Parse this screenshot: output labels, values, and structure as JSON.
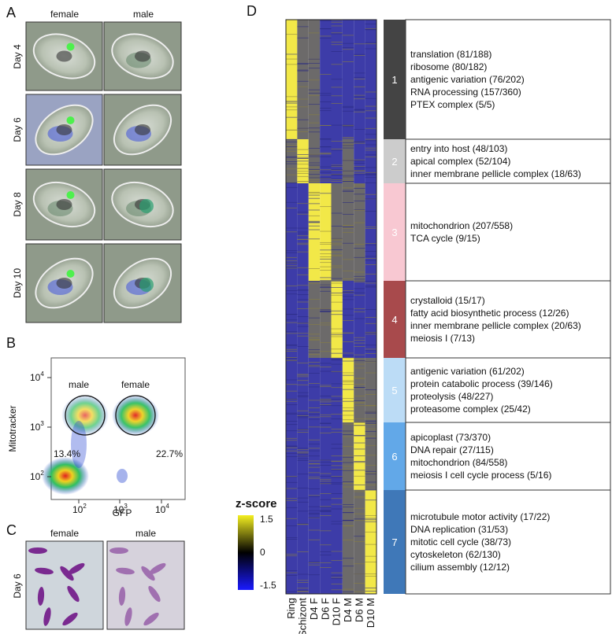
{
  "panel_a": {
    "letter": "A",
    "columns": [
      "female",
      "male"
    ],
    "rows": [
      "Day 4",
      "Day 6",
      "Day 8",
      "Day 10"
    ]
  },
  "panel_b": {
    "letter": "B",
    "y_label": "Mitotracker",
    "x_label": "GFP",
    "gates": [
      "male",
      "female"
    ],
    "percentages": [
      "13.4%",
      "22.7%"
    ],
    "y_ticks": [
      {
        "base": "10",
        "exp": "4"
      },
      {
        "base": "10",
        "exp": "3"
      },
      {
        "base": "10",
        "exp": "2"
      }
    ],
    "x_ticks": [
      {
        "base": "10",
        "exp": "2"
      },
      {
        "base": "10",
        "exp": "3"
      },
      {
        "base": "10",
        "exp": "4"
      }
    ]
  },
  "panel_c": {
    "letter": "C",
    "columns": [
      "female",
      "male"
    ],
    "row": "Day 6"
  },
  "panel_d": {
    "letter": "D",
    "columns": [
      "Ring",
      "Schizont",
      "D4 F",
      "D6 F",
      "D10 F",
      "D4 M",
      "D6 M",
      "D10 M"
    ],
    "colorbar": {
      "title": "z-score",
      "ticks": [
        "1.5",
        "0",
        "-1.5"
      ]
    },
    "clusters": [
      {
        "number": "1",
        "terms": [
          "translation (81/188)",
          "ribosome (80/182)",
          "antigenic variation (76/202)",
          "RNA processing (157/360)",
          "PTEX complex (5/5)"
        ]
      },
      {
        "number": "2",
        "terms": [
          "entry into host (48/103)",
          "apical complex (52/104)",
          "inner membrane pellicle complex (18/63)"
        ]
      },
      {
        "number": "3",
        "terms": [
          "mitochondrion (207/558)",
          "TCA cycle (9/15)"
        ]
      },
      {
        "number": "4",
        "terms": [
          "crystalloid (15/17)",
          "fatty acid biosynthetic process (12/26)",
          "inner membrane pellicle complex (20/63)",
          "meiosis I (7/13)"
        ]
      },
      {
        "number": "5",
        "terms": [
          "antigenic variation (61/202)",
          "protein catabolic process (39/146)",
          "proteolysis (48/227)",
          "proteasome complex (25/42)"
        ]
      },
      {
        "number": "6",
        "terms": [
          "apicoplast (73/370)",
          "DNA repair (27/115)",
          "mitochondrion (84/558)",
          "meiosis I cell cycle process (5/16)"
        ]
      },
      {
        "number": "7",
        "terms": [
          "microtubule motor activity (17/22)",
          "DNA replication (31/53)",
          "mitotic cell cycle (38/73)",
          "cytoskeleton (62/130)",
          "cilium assembly (12/12)"
        ]
      }
    ]
  }
}
